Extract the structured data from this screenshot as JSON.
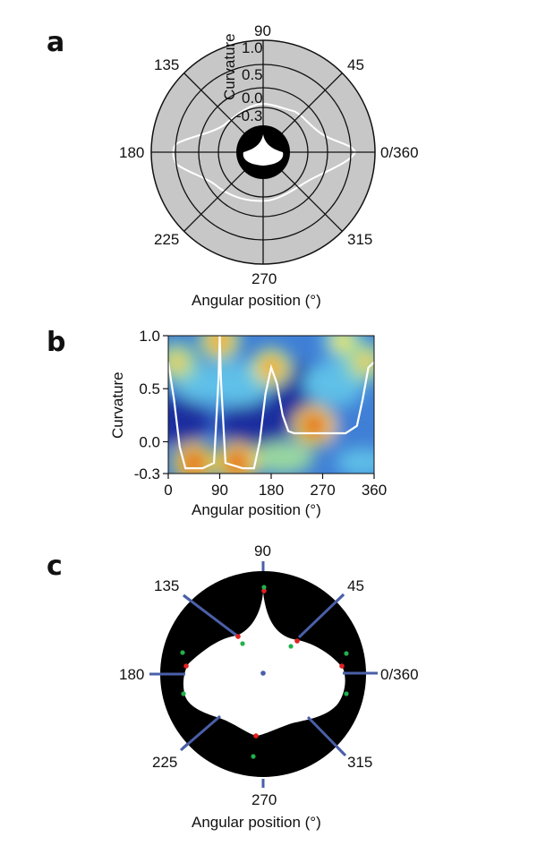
{
  "panels": {
    "a": {
      "letter": "a",
      "angle_labels": {
        "a0": "0/360",
        "a45": "45",
        "a90": "90",
        "a135": "135",
        "a180": "180",
        "a225": "225",
        "a270": "270",
        "a315": "315"
      },
      "curvature_label": "Curvature",
      "ring_labels": {
        "r1": "1.0",
        "r2": "0.5",
        "r3": "0.0",
        "r4": "-0.3"
      },
      "xlabel": "Angular position (°)"
    },
    "b": {
      "letter": "b",
      "ylabel": "Curvature",
      "xlabel": "Angular position (°)"
    },
    "c": {
      "letter": "c",
      "angle_labels": {
        "a0": "0/360",
        "a45": "45",
        "a90": "90",
        "a135": "135",
        "a180": "180",
        "a225": "225",
        "a270": "270",
        "a315": "315"
      },
      "xlabel": "Angular position (°)"
    }
  },
  "chart_data": {
    "type": "heatmap",
    "xlabel": "Angular position (°)",
    "ylabel": "Curvature",
    "xlim": [
      0,
      360
    ],
    "ylim": [
      -0.3,
      1.0
    ],
    "x_ticks": [
      "0",
      "90",
      "180",
      "270",
      "360"
    ],
    "y_ticks": [
      "1.0",
      "0.5",
      "0.0",
      "-0.3"
    ],
    "colormap": [
      "#1a2f9f",
      "#3f7fd6",
      "#5fc0e8",
      "#9ad8a0",
      "#f5e64a",
      "#f5a32c",
      "#e83a1c",
      "#c0141a"
    ],
    "hotspots": [
      {
        "x": 45,
        "y": -0.2,
        "level": 1.0
      },
      {
        "x": 120,
        "y": -0.2,
        "level": 0.95
      },
      {
        "x": 90,
        "y": 0.95,
        "level": 0.9
      },
      {
        "x": 180,
        "y": 0.7,
        "level": 0.9
      },
      {
        "x": 255,
        "y": 0.15,
        "level": 1.0
      },
      {
        "x": 15,
        "y": 0.75,
        "level": 0.7
      },
      {
        "x": 305,
        "y": 0.95,
        "level": 0.6
      },
      {
        "x": 345,
        "y": 0.75,
        "level": 0.7
      }
    ],
    "curve": {
      "x": [
        0,
        10,
        20,
        30,
        60,
        80,
        88,
        90,
        92,
        100,
        130,
        150,
        160,
        170,
        180,
        190,
        200,
        210,
        220,
        230,
        260,
        290,
        310,
        330,
        340,
        350,
        360
      ],
      "y": [
        0.75,
        0.4,
        -0.05,
        -0.25,
        -0.25,
        -0.2,
        0.6,
        1.0,
        0.6,
        -0.2,
        -0.25,
        -0.25,
        0.0,
        0.45,
        0.7,
        0.55,
        0.25,
        0.1,
        0.08,
        0.08,
        0.08,
        0.08,
        0.08,
        0.15,
        0.4,
        0.7,
        0.75
      ]
    }
  }
}
